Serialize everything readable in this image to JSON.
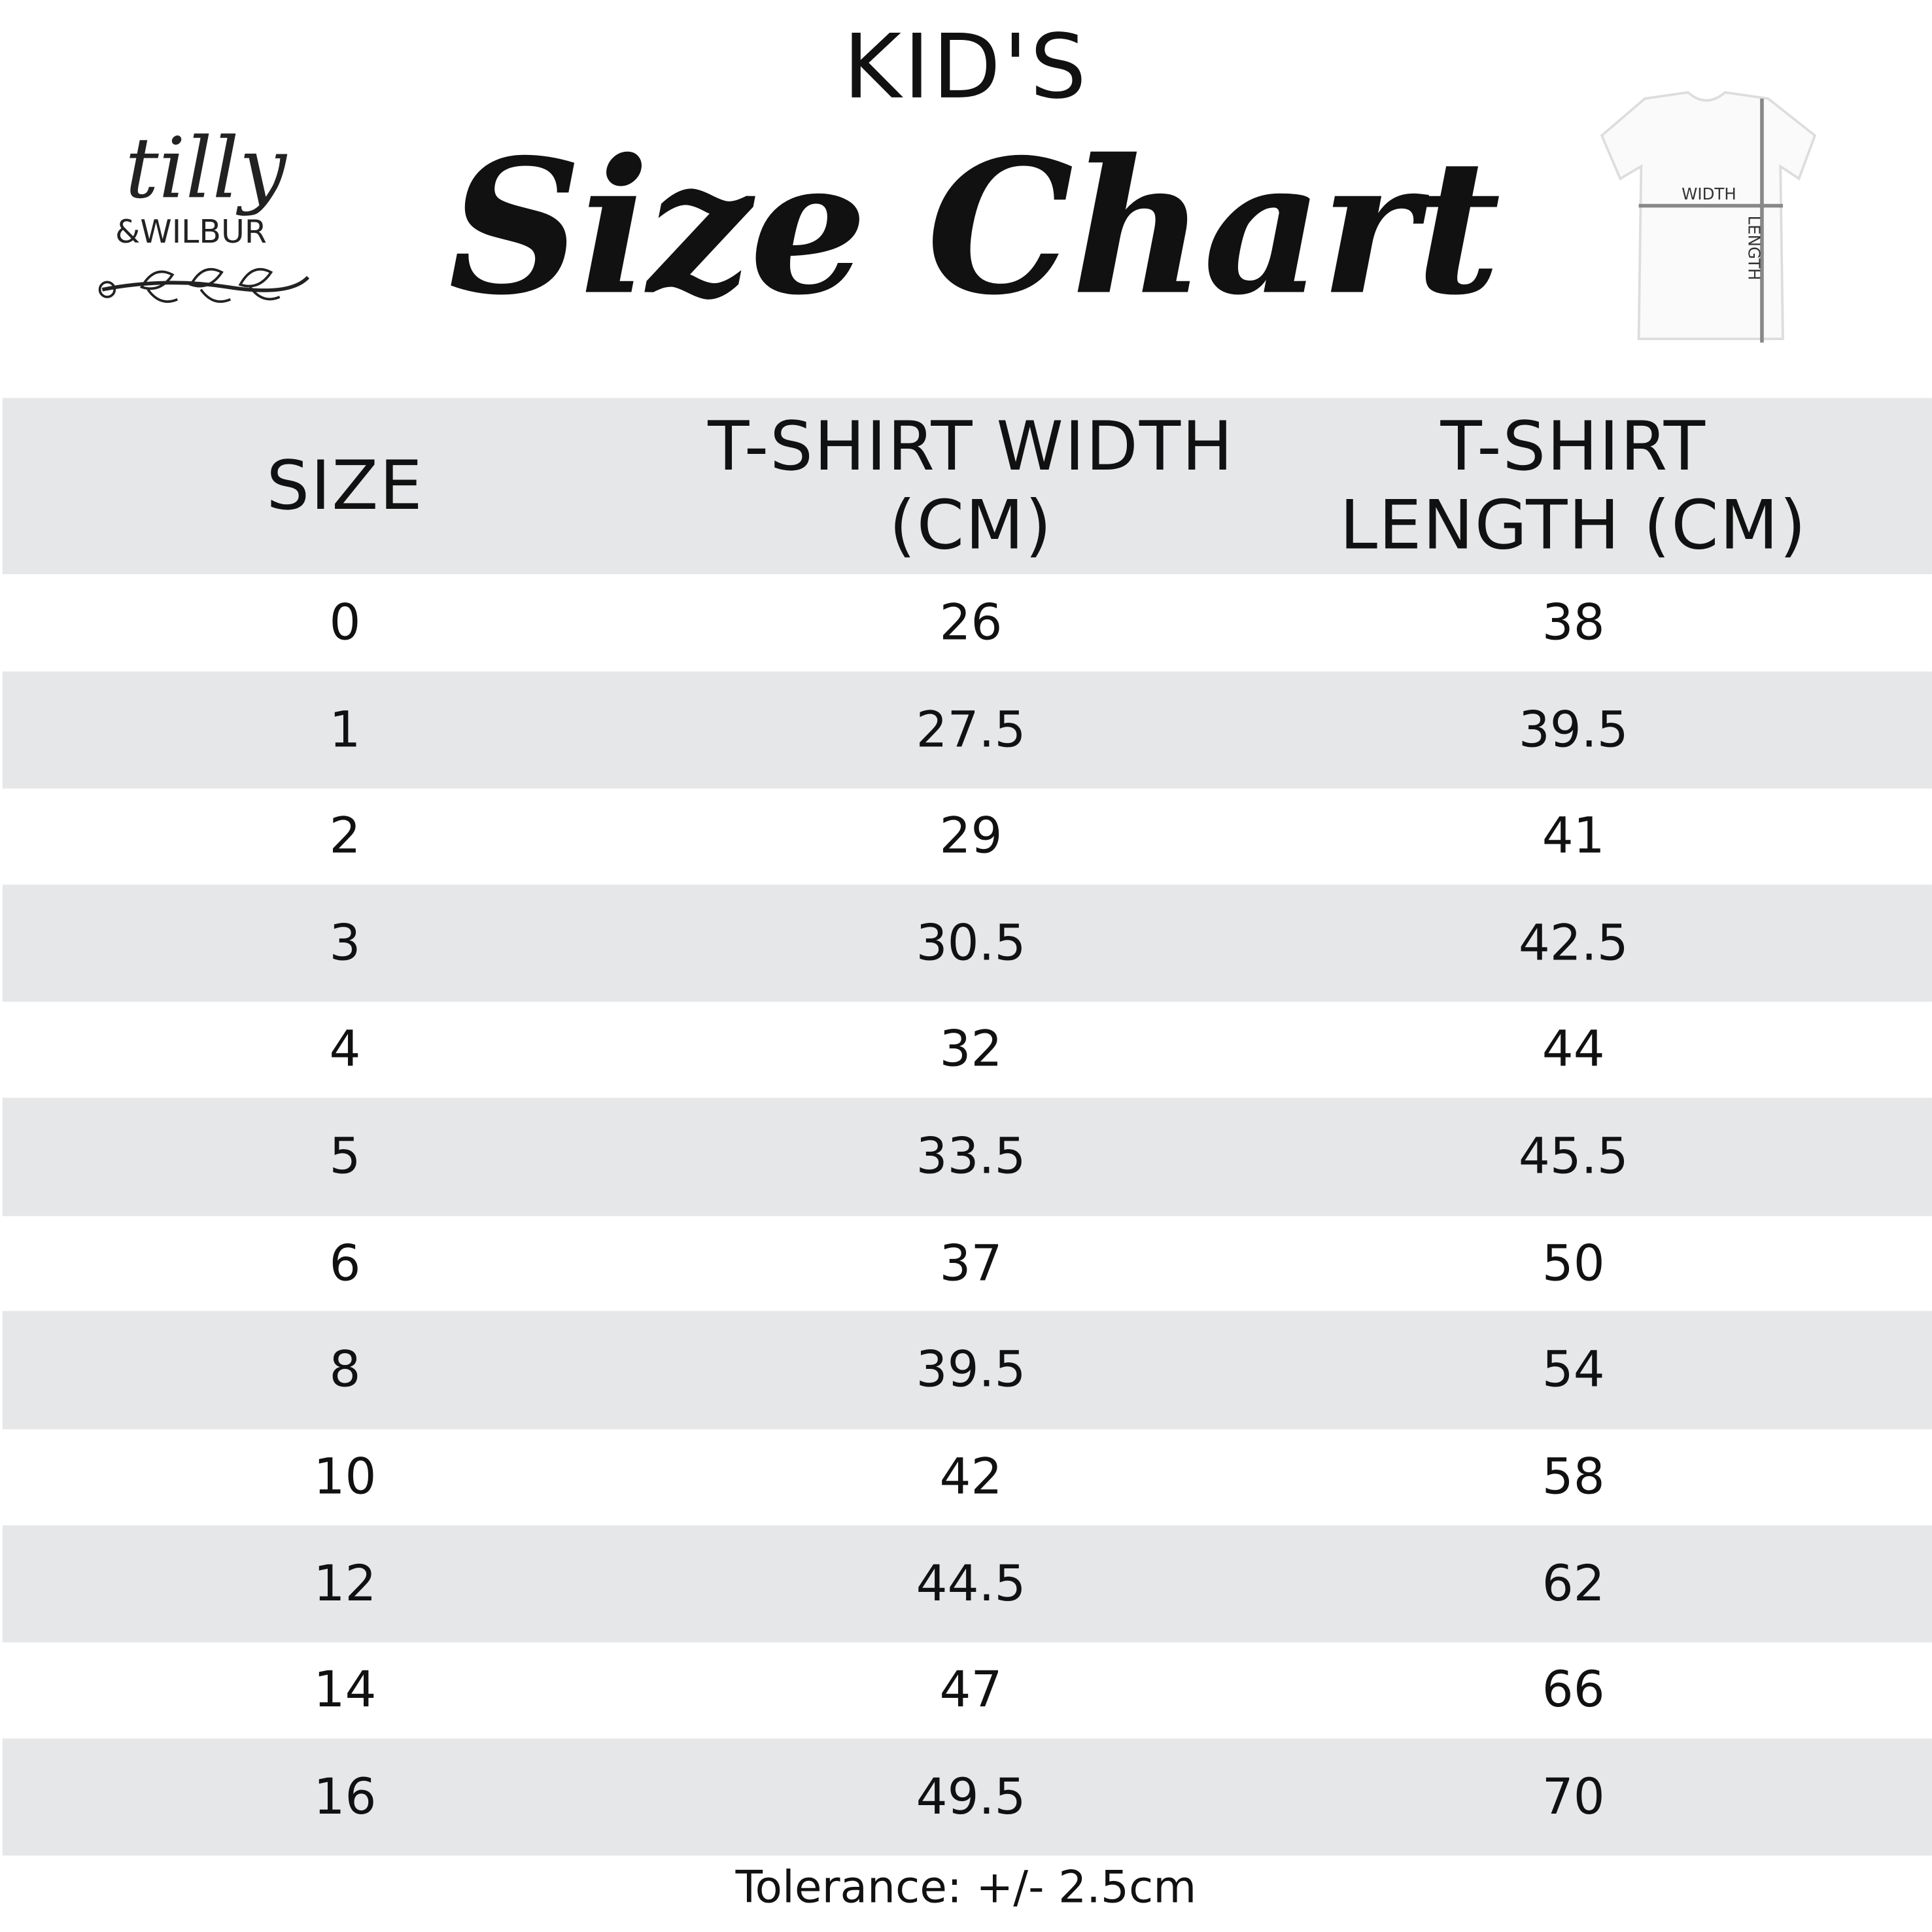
{
  "brand": {
    "logo_text": "tilly & WILBUR"
  },
  "header": {
    "kicker": "KID'S",
    "title": "Size Chart"
  },
  "diagram": {
    "width_label": "WIDTH",
    "length_label": "LENGTH"
  },
  "table": {
    "columns": [
      "SIZE",
      "T-SHIRT WIDTH (CM)",
      "T-SHIRT LENGTH (CM)"
    ],
    "rows": [
      [
        "0",
        "26",
        "38"
      ],
      [
        "1",
        "27.5",
        "39.5"
      ],
      [
        "2",
        "29",
        "41"
      ],
      [
        "3",
        "30.5",
        "42.5"
      ],
      [
        "4",
        "32",
        "44"
      ],
      [
        "5",
        "33.5",
        "45.5"
      ],
      [
        "6",
        "37",
        "50"
      ],
      [
        "8",
        "39.5",
        "54"
      ],
      [
        "10",
        "42",
        "58"
      ],
      [
        "12",
        "44.5",
        "62"
      ],
      [
        "14",
        "47",
        "66"
      ],
      [
        "16",
        "49.5",
        "70"
      ]
    ]
  },
  "footer": {
    "tolerance": "Tolerance: +/- 2.5cm"
  },
  "colors": {
    "stripe": "#e6e7e9",
    "text": "#111111"
  }
}
